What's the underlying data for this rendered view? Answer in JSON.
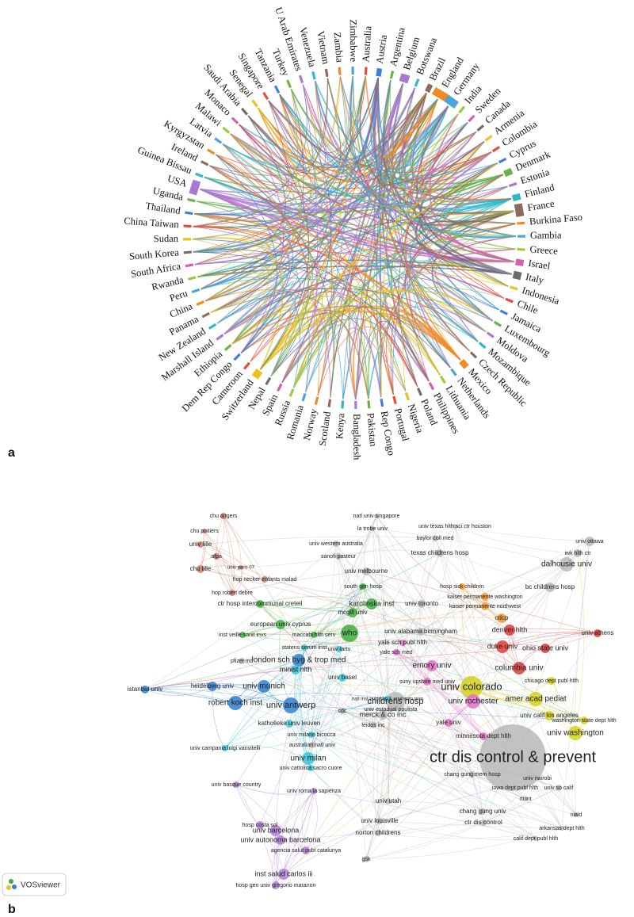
{
  "panel_a": {
    "label": "a",
    "countries": [
      "Australia",
      "Austria",
      "Argentina",
      "Belgium",
      "Botswana",
      "Brazil",
      "England",
      "Germany",
      "India",
      "Sweden",
      "Canada",
      "Armenia",
      "Colombia",
      "Cyprus",
      "Denmark",
      "Estonia",
      "Finland",
      "France",
      "Burkina Faso",
      "Gambia",
      "Greece",
      "Israel",
      "Italy",
      "Indonesia",
      "Chile",
      "Jamaica",
      "Luxembourg",
      "Moldova",
      "Mozambique",
      "Czech Republic",
      "Mexico",
      "Netherlands",
      "Lithuania",
      "Philippines",
      "Poland",
      "Nigeria",
      "Portugal",
      "Rep Congo",
      "Pakistan",
      "Bangladesh",
      "Kenya",
      "Scotland",
      "Norway",
      "Romania",
      "Russia",
      "Spain",
      "Nepal",
      "Switzerland",
      "Cameroon",
      "Dem Rep Congo",
      "Ethiopia",
      "Marshall Island",
      "New Zealand",
      "Panama",
      "China",
      "Peru",
      "Rwanda",
      "South Africa",
      "South Korea",
      "Sudan",
      "China Taiwan",
      "Thailand",
      "Uganda",
      "USA",
      "Guinea Bissau",
      "Ireland",
      "Kyrgyzstan",
      "Latvia",
      "Malawi",
      "Monaco",
      "Saudi Arabia",
      "Senegal",
      "Singapore",
      "Tanzania",
      "Turkey",
      "U Arab Emirates",
      "Venezuela",
      "Vietnam",
      "Zambia",
      "Zimbabwe"
    ]
  },
  "panel_b": {
    "label": "b",
    "badge": "VOSviewer",
    "nodes": [
      "chu angers",
      "chu poitiers",
      "univ lille",
      "afpa",
      "univ paris 07",
      "chu lille",
      "hop necker enfants malad",
      "hop robert debre",
      "ctr hosp intercommunal creteil",
      "european univ cyprus",
      "inst veille sanit invs",
      "maccabi hlth serv",
      "karolinska inst",
      "mcgill univ",
      "south gen hosp",
      "univ melbourne",
      "sanofi pasteur",
      "univ western australia",
      "la trobe univ",
      "natl univ singapore",
      "who",
      "statens serum inst",
      "yale sch publ hlth",
      "yale sch med",
      "univ alabama birmingham",
      "univ toronto",
      "univ texas hlth sci ctr houston",
      "baylor coll med",
      "texas childrens hosp",
      "hosp sick children",
      "kaiser permanente washington",
      "kaiser permanente northwest",
      "cdcp",
      "denver hlth",
      "duke univ",
      "ohio state univ",
      "columbia univ",
      "univ athens",
      "iwk hlth ctr",
      "univ ottawa",
      "dalhousie univ",
      "bc childrens hosp",
      "chicago dept publ hlth",
      "emory univ",
      "univ colorado",
      "univ rochester",
      "amer acad pediat",
      "univ calif los angeles",
      "washington state dept hlth",
      "univ washington",
      "ctr dis control & prevent",
      "suny upstate med univ",
      "yale univ",
      "minnesota dept hlth",
      "chang gung mem hosp",
      "univ nairobi",
      "iowa dept publ hlth",
      "univ so calif",
      "rti int",
      "niaid",
      "arkansas dept hlth",
      "calif dept publ hlth",
      "chang gung univ",
      "ctr dis control",
      "univ utah",
      "univ louisville",
      "norton childrens",
      "gsk",
      "childrens hosp",
      "merck & co inc",
      "leidos inc",
      "cdc",
      "natl inst publ hlth & environm rivm",
      "univ estadual paulista",
      "london sch hyg & trop med",
      "minist hlth",
      "univ tartu",
      "pfizer inc",
      "univ basel",
      "istanbul univ",
      "heidelberg univ",
      "univ munich",
      "robert koch inst",
      "univ antwerp",
      "katholieke univ leuven",
      "univ milano bicocca",
      "australian natl univ",
      "univ campania luigi vanvitelli",
      "univ milan",
      "univ cattolica sacro cuore",
      "univ basque country",
      "univ roma la sapienza",
      "hosp costa sol",
      "univ barcelona",
      "univ autonoma barcelona",
      "agencia salut publ catalunya",
      "inst salud carlos iii",
      "hosp gen univ gregorio maranon"
    ]
  }
}
